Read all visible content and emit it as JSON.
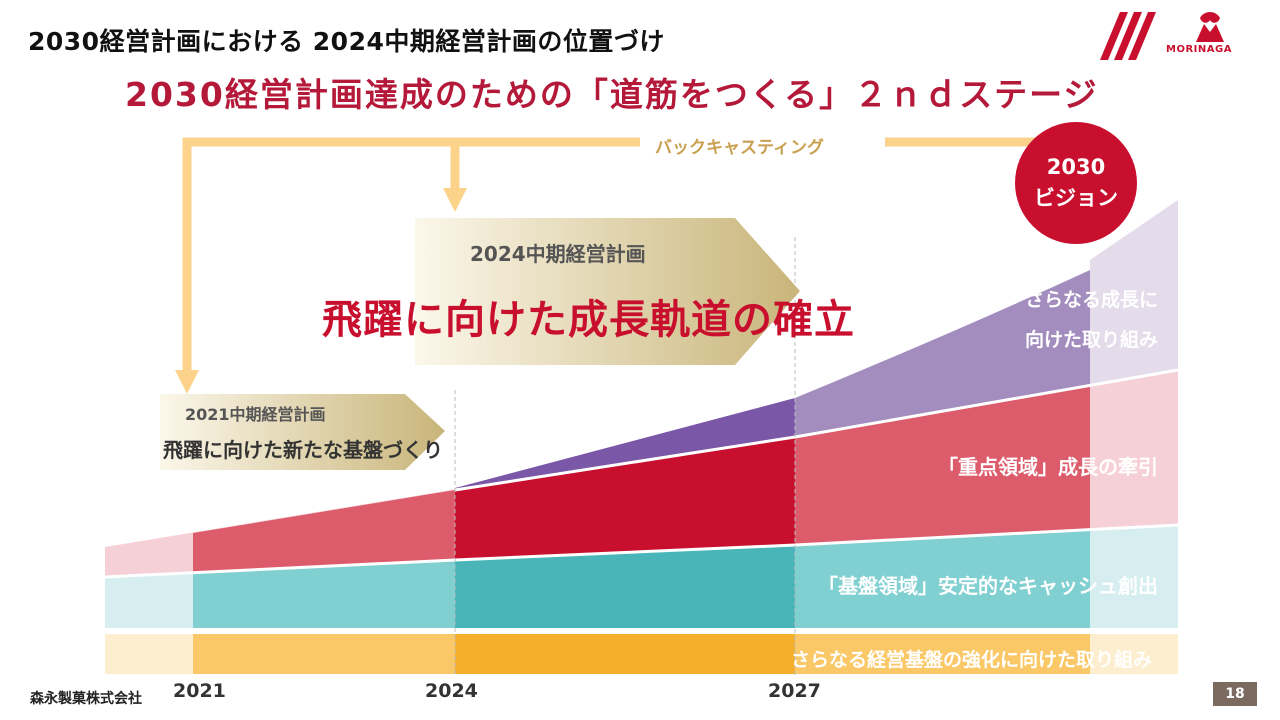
{
  "header": {
    "title": "2030経営計画における 2024中期経営計画の位置づけ",
    "subtitle": "2030経営計画達成のための「道筋をつくる」２ｎｄステージ",
    "logo_text": "MORINAGA"
  },
  "backcasting_label": "バックキャスティング",
  "vision": {
    "line1": "2030",
    "line2": "ビジョン"
  },
  "plan_2024": {
    "label": "2024中期経営計画",
    "slogan": "飛躍に向けた成長軌道の確立"
  },
  "plan_2021": {
    "label": "2021中期経営計画",
    "slogan": "飛躍に向けた新たな基盤づくり"
  },
  "bands": {
    "growth_line1": "さらなる成長に",
    "growth_line2": "向けた取り組み",
    "focus": "「重点領域」成長の牽引",
    "base": "「基盤領域」安定的なキャッシュ創出",
    "mgmt": "さらなる経営基盤の強化に向けた取り組み"
  },
  "years": [
    "2021",
    "2024",
    "2027"
  ],
  "footer": {
    "company": "森永製菓株式会社",
    "page": "18"
  },
  "colors": {
    "accent": "#c8102e",
    "purple": "#8e6bb0",
    "red": "#c8102e",
    "teal": "#4ab5b8",
    "orange": "#f4b02a",
    "arrow": "#fdd38c"
  }
}
